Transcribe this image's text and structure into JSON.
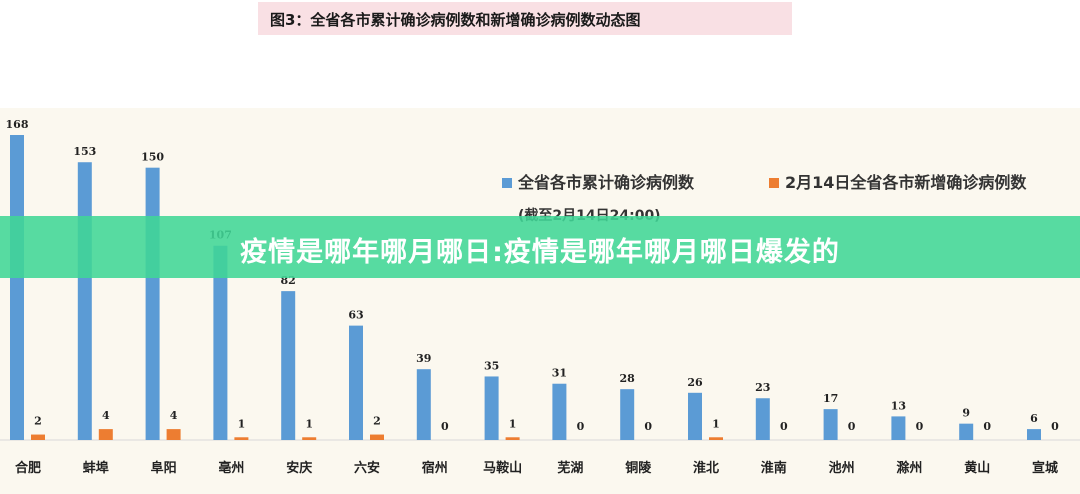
{
  "banner": {
    "text": "疫情是哪年哪月哪日:疫情是哪年哪月哪日爆发的"
  },
  "chart_data": {
    "type": "bar",
    "title": "图3：全省各市累计确诊病例数和新增确诊病例数动态图",
    "categories": [
      "合肥",
      "蚌埠",
      "阜阳",
      "亳州",
      "安庆",
      "六安",
      "宿州",
      "马鞍山",
      "芜湖",
      "铜陵",
      "淮北",
      "淮南",
      "池州",
      "滁州",
      "黄山",
      "宣城"
    ],
    "series": [
      {
        "name": "全省各市累计确诊病例数",
        "color": "#5b9bd5",
        "values": [
          168,
          153,
          150,
          107,
          82,
          63,
          39,
          35,
          31,
          28,
          26,
          23,
          17,
          13,
          9,
          6
        ]
      },
      {
        "name": "2月14日全省各市新增确诊病例数",
        "color": "#ed7d31",
        "values": [
          2,
          4,
          4,
          1,
          1,
          2,
          0,
          1,
          0,
          0,
          1,
          0,
          0,
          0,
          0,
          0
        ]
      }
    ],
    "legend_note": "(截至2月14日24:00)",
    "legend_position": "top-right",
    "ylim": [
      0,
      168
    ],
    "grid": false
  }
}
